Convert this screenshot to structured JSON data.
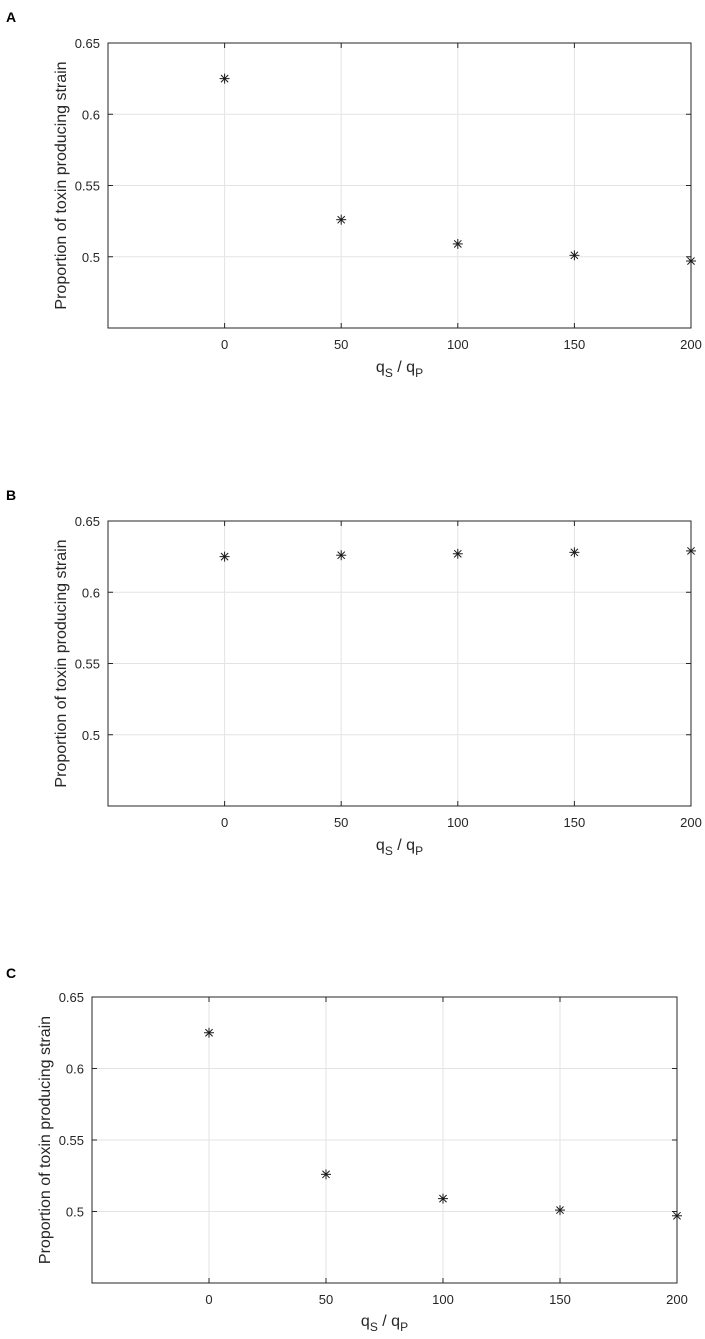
{
  "chart_data": [
    {
      "type": "scatter",
      "panel_label": "A",
      "x": [
        0,
        50,
        100,
        150,
        200
      ],
      "y": [
        0.625,
        0.526,
        0.509,
        0.501,
        0.497
      ],
      "marker": "asterisk",
      "ylabel": "Proportion of toxin producing strain",
      "xlabel_base1": "q",
      "xlabel_sub1": "S",
      "xlabel_mid": " / ",
      "xlabel_base2": "q",
      "xlabel_sub2": "P",
      "xlim": [
        -50,
        200
      ],
      "ylim": [
        0.45,
        0.65
      ],
      "xticks": [
        "0",
        "50",
        "100",
        "150",
        "200"
      ],
      "yticks": [
        "0.5",
        "0.55",
        "0.6",
        "0.65"
      ],
      "grid": true
    },
    {
      "type": "scatter",
      "panel_label": "B",
      "x": [
        0,
        50,
        100,
        150,
        200
      ],
      "y": [
        0.625,
        0.626,
        0.627,
        0.628,
        0.629
      ],
      "marker": "asterisk",
      "ylabel": "Proportion of toxin producing strain",
      "xlabel_base1": "q",
      "xlabel_sub1": "S",
      "xlabel_mid": " / ",
      "xlabel_base2": "q",
      "xlabel_sub2": "P",
      "xlim": [
        -50,
        200
      ],
      "ylim": [
        0.45,
        0.65
      ],
      "xticks": [
        "0",
        "50",
        "100",
        "150",
        "200"
      ],
      "yticks": [
        "0.5",
        "0.55",
        "0.6",
        "0.65"
      ],
      "grid": true
    },
    {
      "type": "scatter",
      "panel_label": "C",
      "x": [
        0,
        50,
        100,
        150,
        200
      ],
      "y": [
        0.625,
        0.526,
        0.509,
        0.501,
        0.497
      ],
      "marker": "asterisk",
      "ylabel": "Proportion of toxin producing strain",
      "xlabel_base1": "q",
      "xlabel_sub1": "S",
      "xlabel_mid": " / ",
      "xlabel_base2": "q",
      "xlabel_sub2": "P",
      "xlim": [
        -50,
        200
      ],
      "ylim": [
        0.45,
        0.65
      ],
      "xticks": [
        "0",
        "50",
        "100",
        "150",
        "200"
      ],
      "yticks": [
        "0.5",
        "0.55",
        "0.6",
        "0.65"
      ],
      "grid": true
    }
  ]
}
